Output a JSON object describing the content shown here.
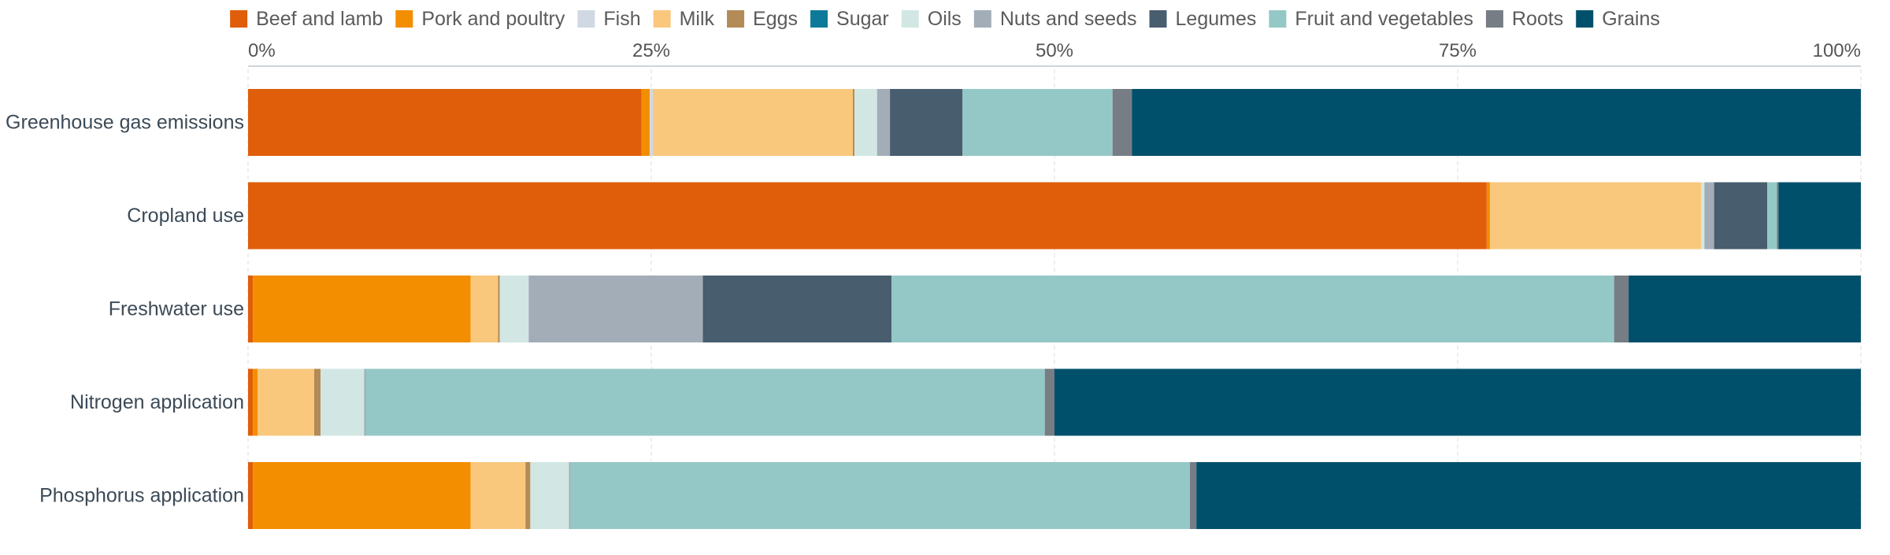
{
  "chart_data": {
    "type": "bar",
    "orientation": "horizontal",
    "stacked": true,
    "normalized": true,
    "title": "",
    "xlabel": "",
    "ylabel": "",
    "xlim": [
      0,
      100
    ],
    "x_ticks": [
      {
        "value": 0,
        "label": "0%"
      },
      {
        "value": 25,
        "label": "25%"
      },
      {
        "value": 50,
        "label": "50%"
      },
      {
        "value": 75,
        "label": "75%"
      },
      {
        "value": 100,
        "label": "100%"
      }
    ],
    "x_axis_position": "top",
    "grid": true,
    "legend_position": "top",
    "categories": [
      "Greenhouse gas emissions",
      "Cropland use",
      "Freshwater use",
      "Nitrogen application",
      "Phosphorus application"
    ],
    "series": [
      {
        "name": "Beef and lamb",
        "color": "#e05d0a",
        "values": [
          24.4,
          76.8,
          0.3,
          0.3,
          0.3
        ]
      },
      {
        "name": "Pork and poultry",
        "color": "#f28e00",
        "values": [
          0.5,
          0.2,
          13.5,
          0.3,
          13.5
        ]
      },
      {
        "name": "Fish",
        "color": "#d0d9e3",
        "values": [
          0.2,
          0.0,
          0.0,
          0.0,
          0.0
        ]
      },
      {
        "name": "Milk",
        "color": "#f9c87d",
        "values": [
          12.4,
          13.1,
          1.7,
          3.5,
          3.4
        ]
      },
      {
        "name": "Eggs",
        "color": "#b38b57",
        "values": [
          0.1,
          0.0,
          0.1,
          0.4,
          0.3
        ]
      },
      {
        "name": "Sugar",
        "color": "#0d7a9a",
        "values": [
          0.0,
          0.0,
          0.0,
          0.0,
          0.0
        ]
      },
      {
        "name": "Oils",
        "color": "#d2e7e3",
        "values": [
          1.4,
          0.2,
          1.8,
          2.7,
          2.4
        ]
      },
      {
        "name": "Nuts and seeds",
        "color": "#a2adb8",
        "values": [
          0.8,
          0.6,
          10.8,
          0.1,
          0.1
        ]
      },
      {
        "name": "Legumes",
        "color": "#485d6e",
        "values": [
          4.5,
          3.3,
          11.7,
          0.0,
          0.0
        ]
      },
      {
        "name": "Fruit and vegetables",
        "color": "#94c8c7",
        "values": [
          9.3,
          0.6,
          44.8,
          42.1,
          38.4
        ]
      },
      {
        "name": "Roots",
        "color": "#777d85",
        "values": [
          1.2,
          0.1,
          0.9,
          0.6,
          0.4
        ]
      },
      {
        "name": "Grains",
        "color": "#01506b",
        "values": [
          45.2,
          5.1,
          14.4,
          50.0,
          41.2
        ]
      }
    ]
  }
}
